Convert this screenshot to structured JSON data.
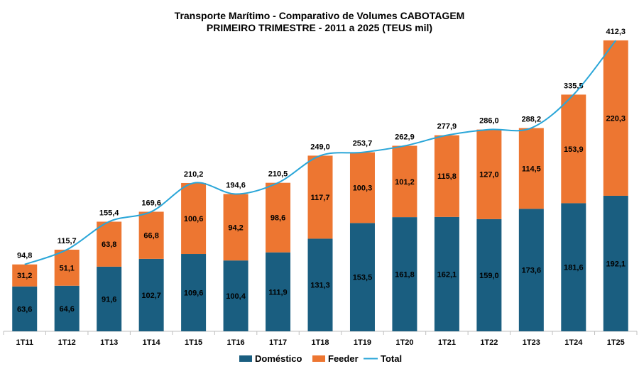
{
  "chart_data": {
    "type": "bar",
    "stacked": true,
    "title": "Transporte Marítimo - Comparativo de Volumes CABOTAGEM",
    "subtitle": "PRIMEIRO TRIMESTRE - 2011 a 2025 (TEUS mil)",
    "categories": [
      "1T11",
      "1T12",
      "1T13",
      "1T14",
      "1T15",
      "1T16",
      "1T17",
      "1T18",
      "1T19",
      "1T20",
      "1T21",
      "1T22",
      "1T23",
      "1T24",
      "1T25"
    ],
    "series": [
      {
        "name": "Doméstico",
        "type": "bar",
        "color": "#1a5e80",
        "values": [
          63.6,
          64.6,
          91.6,
          102.7,
          109.6,
          100.4,
          111.9,
          131.3,
          153.5,
          161.8,
          162.1,
          159.0,
          173.6,
          181.6,
          192.1
        ],
        "labels": [
          "63,6",
          "64,6",
          "91,6",
          "102,7",
          "109,6",
          "100,4",
          "111,9",
          "131,3",
          "153,5",
          "161,8",
          "162,1",
          "159,0",
          "173,6",
          "181,6",
          "192,1"
        ]
      },
      {
        "name": "Feeder",
        "type": "bar",
        "color": "#ed7631",
        "values": [
          31.2,
          51.1,
          63.8,
          66.8,
          100.6,
          94.2,
          98.6,
          117.7,
          100.3,
          101.2,
          115.8,
          127.0,
          114.5,
          153.9,
          220.3
        ],
        "labels": [
          "31,2",
          "51,1",
          "63,8",
          "66,8",
          "100,6",
          "94,2",
          "98,6",
          "117,7",
          "100,3",
          "101,2",
          "115,8",
          "127,0",
          "114,5",
          "153,9",
          "220,3"
        ]
      },
      {
        "name": "Total",
        "type": "line",
        "color": "#2aa6d8",
        "values": [
          94.8,
          115.7,
          155.4,
          169.6,
          210.2,
          194.6,
          210.5,
          249.0,
          253.7,
          262.9,
          277.9,
          286.0,
          288.2,
          335.5,
          412.3
        ],
        "labels": [
          "94,8",
          "115,7",
          "155,4",
          "169,6",
          "210,2",
          "194,6",
          "210,5",
          "249,0",
          "253,7",
          "262,9",
          "277,9",
          "286,0",
          "288,2",
          "335,5",
          "412,3"
        ]
      }
    ],
    "ylim": [
      0,
      412.3
    ],
    "grid": false,
    "legend": "bottom-center"
  }
}
